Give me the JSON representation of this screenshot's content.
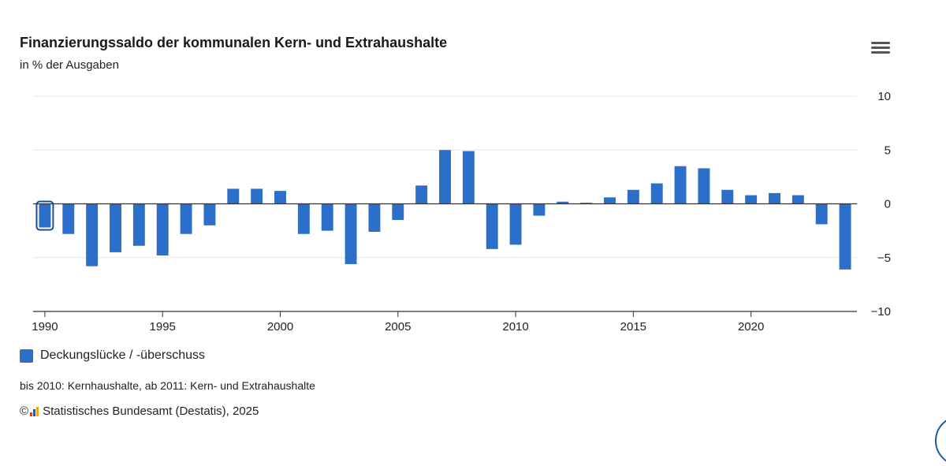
{
  "header": {
    "title": "Finanzierungssaldo der kommunalen Kern- und Extrahaushalte",
    "subtitle": "in % der Ausgaben",
    "menu_icon": "hamburger-menu-icon"
  },
  "chart_data": {
    "type": "bar",
    "x": [
      1990,
      1991,
      1992,
      1993,
      1994,
      1995,
      1996,
      1997,
      1998,
      1999,
      2000,
      2001,
      2002,
      2003,
      2004,
      2005,
      2006,
      2007,
      2008,
      2009,
      2010,
      2011,
      2012,
      2013,
      2014,
      2015,
      2016,
      2017,
      2018,
      2019,
      2020,
      2021,
      2022,
      2023,
      2024
    ],
    "series": [
      {
        "name": "Deckungslücke / -überschuss",
        "color": "#2b6fcb",
        "values": [
          -2.2,
          -2.8,
          -5.8,
          -4.5,
          -3.9,
          -4.8,
          -2.8,
          -2.0,
          1.4,
          1.4,
          1.2,
          -2.8,
          -2.5,
          -5.6,
          -2.6,
          -1.5,
          1.7,
          5.0,
          4.9,
          -4.2,
          -3.8,
          -1.1,
          0.2,
          0.1,
          0.6,
          1.3,
          1.9,
          3.5,
          3.3,
          1.3,
          0.8,
          1.0,
          0.8,
          -1.9,
          -6.1
        ]
      }
    ],
    "x_ticks": [
      "1990",
      "1995",
      "2000",
      "2005",
      "2010",
      "2015",
      "2020"
    ],
    "y_ticks": [
      "-10",
      "-5",
      "0",
      "5",
      "10"
    ],
    "ylim": [
      -10,
      10
    ],
    "xlim": [
      1989.5,
      2024.5
    ],
    "y_axis_position": "right",
    "grid": true,
    "legend_position": "bottom-left",
    "highlighted_index": 0
  },
  "legend": {
    "label": "Deckungslücke / -überschuss",
    "color": "#2b6fcb"
  },
  "footer": {
    "note": "bis 2010: Kernhaushalte, ab 2011: Kern- und Extrahaushalte",
    "copyright_symbol": "©",
    "logo_icon": "destatis-logo-icon",
    "credit": "Statistisches Bundesamt (Destatis), 2025"
  }
}
